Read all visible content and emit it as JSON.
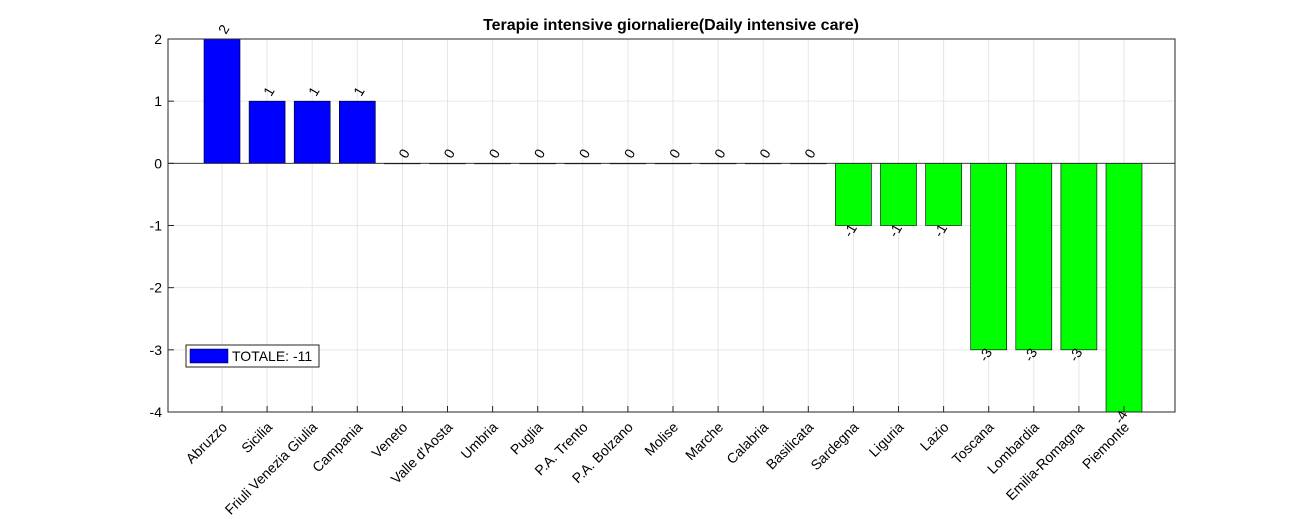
{
  "chart_data": {
    "type": "bar",
    "title": "Terapie intensive giornaliere(Daily intensive care)",
    "xlabel": "",
    "ylabel": "",
    "categories": [
      "Abruzzo",
      "Sicilia",
      "Friuli Venezia Giulia",
      "Campania",
      "Veneto",
      "Valle d'Aosta",
      "Umbria",
      "Puglia",
      "P.A. Trento",
      "P.A. Bolzano",
      "Molise",
      "Marche",
      "Calabria",
      "Basilicata",
      "Sardegna",
      "Liguria",
      "Lazio",
      "Toscana",
      "Lombardia",
      "Emilia-Romagna",
      "Piemonte"
    ],
    "values": [
      2,
      1,
      1,
      1,
      0,
      0,
      0,
      0,
      0,
      0,
      0,
      0,
      0,
      0,
      -1,
      -1,
      -1,
      -3,
      -3,
      -3,
      -4
    ],
    "ylim": [
      -4,
      2
    ],
    "yticks": [
      -4,
      -3,
      -2,
      -1,
      0,
      1,
      2
    ],
    "grid": true,
    "positive_color": "#0000ff",
    "negative_color": "#00ff00",
    "legend": {
      "label": "TOTALE: -11",
      "color": "#0000ff",
      "placement": "lower-left"
    }
  }
}
